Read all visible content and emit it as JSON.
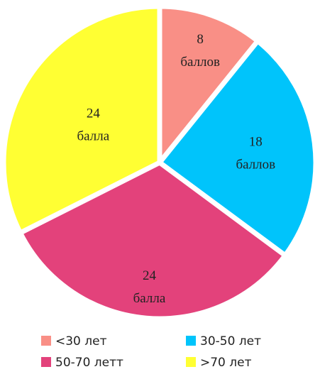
{
  "chart_data": {
    "type": "pie",
    "categories": [
      "<30 лет",
      "30-50 лет",
      "50-70 летт",
      ">70 лет"
    ],
    "values": [
      8,
      18,
      24,
      24
    ],
    "value_labels": [
      "8 баллов",
      "18 баллов",
      "24 балла",
      "24 балла"
    ],
    "colors": [
      "#f98f86",
      "#00c4fb",
      "#e3427b",
      "#ffff33"
    ],
    "legend": "bottom"
  }
}
